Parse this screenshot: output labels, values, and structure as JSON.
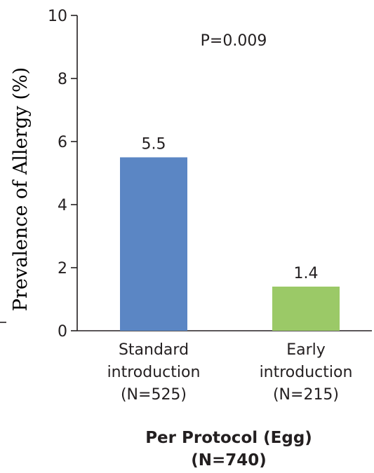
{
  "chart_data": {
    "type": "bar",
    "categories": [
      [
        "Standard",
        "introduction",
        "(N=525)"
      ],
      [
        "Early",
        "introduction",
        "(N=215)"
      ]
    ],
    "values": [
      5.5,
      1.4
    ],
    "data_labels": [
      "5.5",
      "1.4"
    ],
    "colors": [
      "#5b86c4",
      "#9bc967"
    ],
    "ylabel": "Prevalence of Allergy (%)",
    "xlabel_lines": [
      "Per Protocol (Egg)",
      "(N=740)"
    ],
    "annotation": "P=0.009",
    "ylim": [
      0,
      10
    ],
    "yticks": [
      0,
      2,
      4,
      6,
      8,
      10
    ],
    "grid": false
  }
}
